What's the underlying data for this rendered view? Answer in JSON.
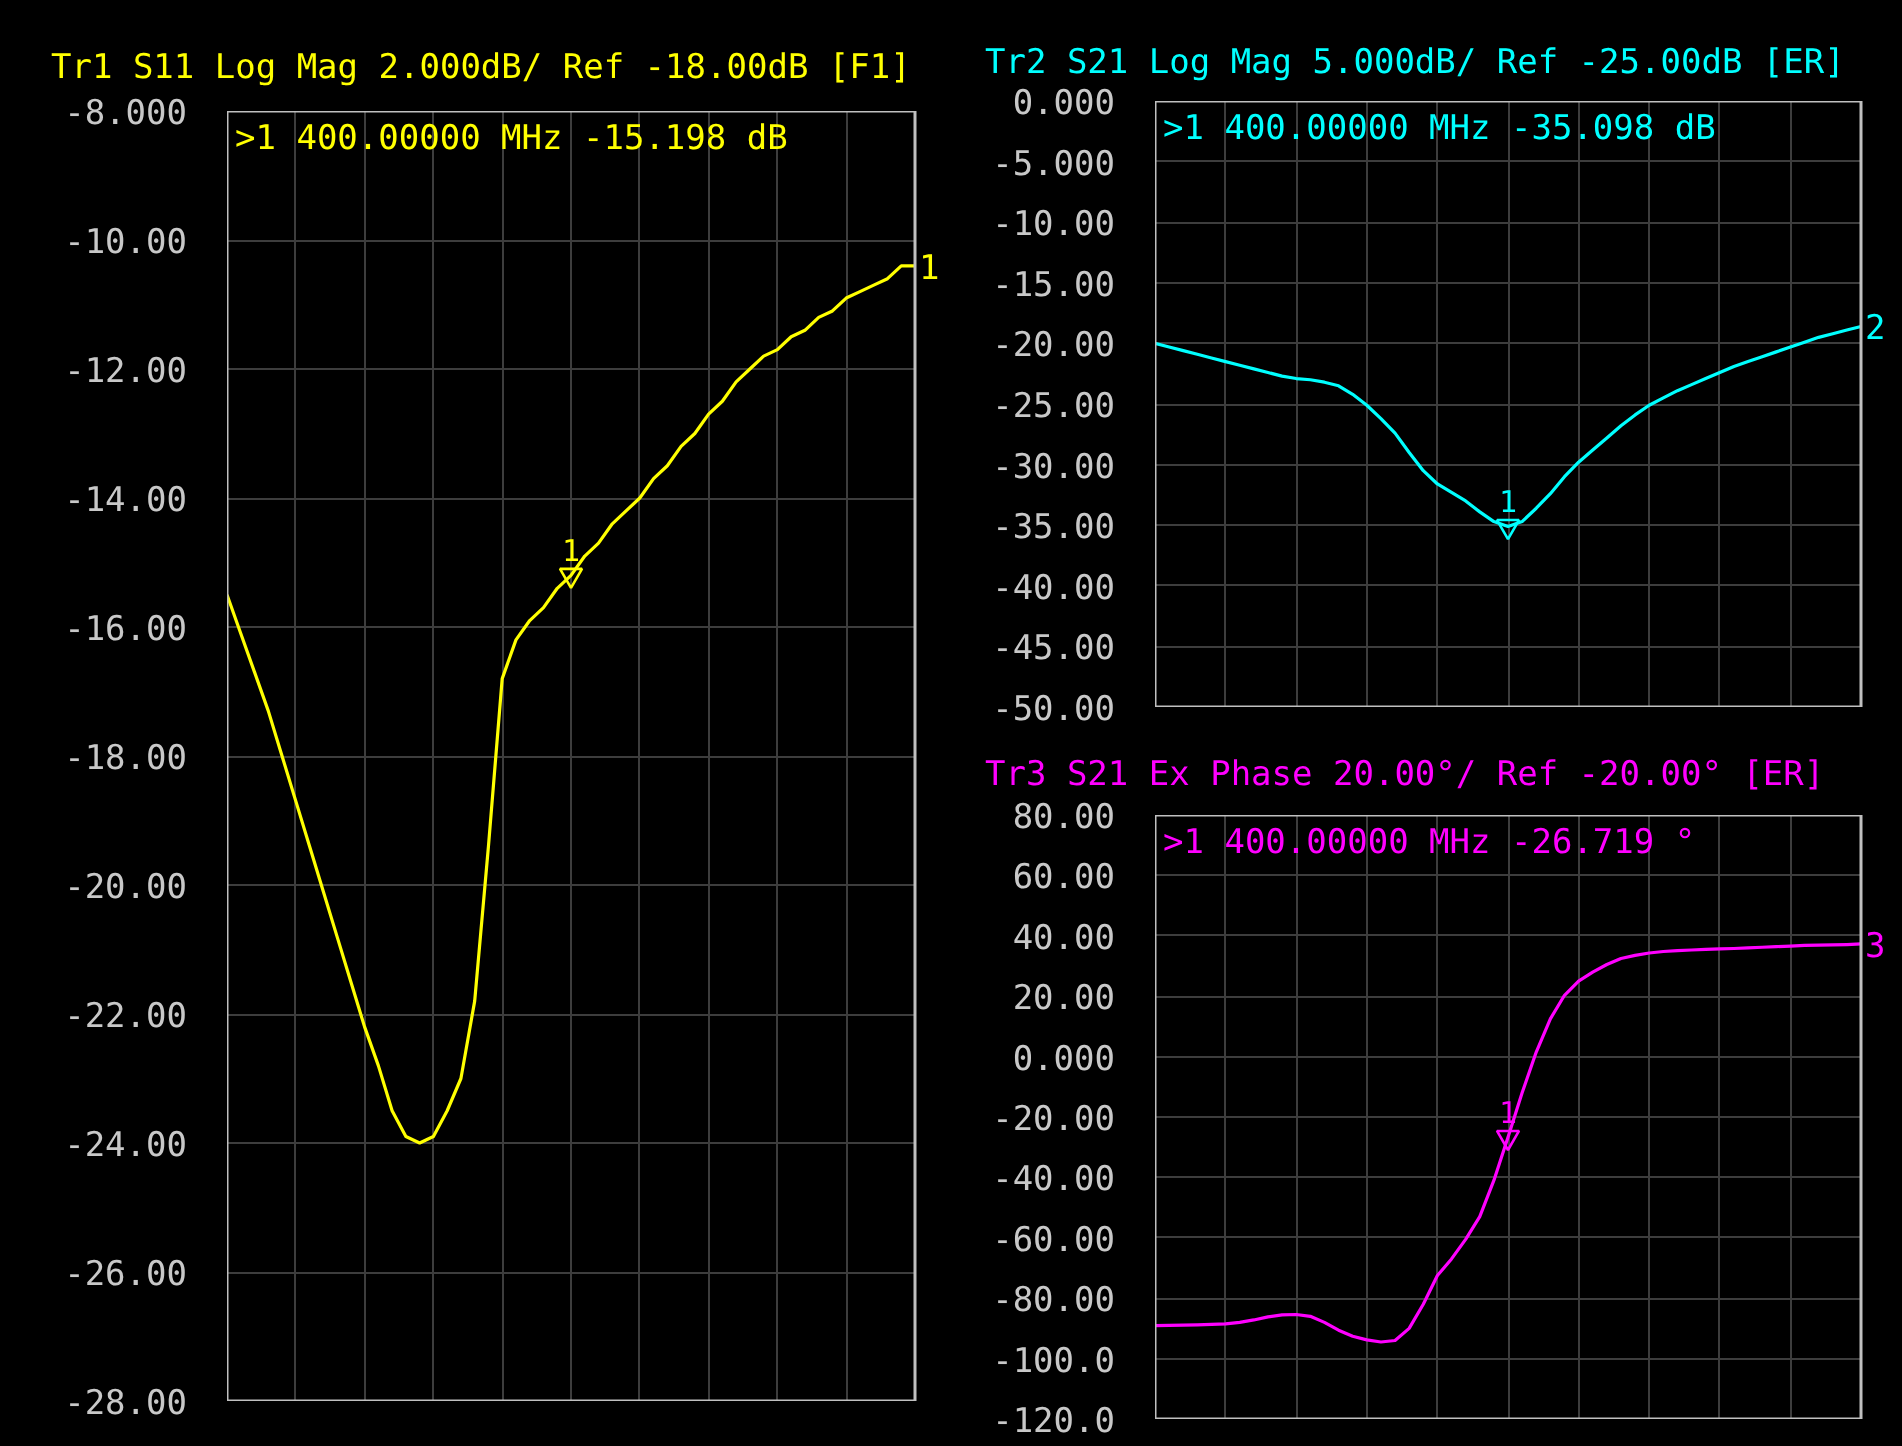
{
  "chart_data": [
    {
      "type": "line",
      "title": "Tr1 S11 Log Mag 2.000dB/ Ref -18.00dB [F1]",
      "categories": [
        null,
        null,
        null,
        null,
        null,
        null,
        null,
        null,
        null,
        null,
        null,
        null,
        null,
        null,
        null,
        null,
        null,
        null,
        null,
        null,
        null,
        null,
        null,
        null,
        null,
        null,
        null,
        null,
        null,
        null,
        null,
        null,
        null,
        null,
        null,
        null,
        null,
        null,
        null,
        null,
        null,
        null,
        null,
        null,
        null,
        null,
        null,
        null,
        null,
        null,
        null
      ],
      "series": [
        {
          "name": "1",
          "color": "#ffff00",
          "values": [
            -15.5,
            -16.1,
            -16.7,
            -17.3,
            -18.0,
            -18.7,
            -19.4,
            -20.1,
            -20.8,
            -21.5,
            -22.2,
            -22.8,
            -23.5,
            -23.9,
            -24.0,
            -23.9,
            -23.5,
            -23.0,
            -21.8,
            -19.4,
            -16.8,
            -16.2,
            -15.9,
            -15.7,
            -15.4,
            -15.2,
            -14.9,
            -14.7,
            -14.4,
            -14.2,
            -14.0,
            -13.7,
            -13.5,
            -13.2,
            -13.0,
            -12.7,
            -12.5,
            -12.2,
            -12.0,
            -11.8,
            -11.7,
            -11.5,
            -11.4,
            -11.2,
            -11.1,
            -10.9,
            -10.8,
            -10.7,
            -10.6,
            -10.4,
            -10.4
          ]
        },
        {
          "type": "scatter",
          "name": "1",
          "color": "#ffff00",
          "marker": "triangle",
          "values": [
            null,
            null,
            null,
            null,
            null,
            null,
            null,
            null,
            null,
            null,
            null,
            null,
            null,
            null,
            null,
            null,
            null,
            null,
            null,
            null,
            null,
            null,
            null,
            null,
            null,
            -15.198,
            null,
            null,
            null,
            null,
            null,
            null,
            null,
            null,
            null,
            null,
            null,
            null,
            null,
            null,
            null,
            null,
            null,
            null,
            null,
            null,
            null,
            null,
            null,
            null,
            null
          ]
        }
      ],
      "ylim": [
        -28,
        -8
      ],
      "yticks": [
        {
          "value": -8,
          "label": "-8.000"
        },
        {
          "value": -10,
          "label": "-10.00"
        },
        {
          "value": -12,
          "label": "-12.00"
        },
        {
          "value": -14,
          "label": "-14.00"
        },
        {
          "value": -16,
          "label": "-16.00"
        },
        {
          "value": -18,
          "label": "-18.00"
        },
        {
          "value": -20,
          "label": "-20.00"
        },
        {
          "value": -22,
          "label": "-22.00"
        },
        {
          "value": -24,
          "label": "-24.00"
        },
        {
          "value": -26,
          "label": "-26.00"
        },
        {
          "value": -28,
          "label": "-28.00"
        }
      ],
      "annotations": [
        ">1  400.00000 MHz -15.198 dB"
      ],
      "grid": true,
      "tick_labels": "y"
    },
    {
      "type": "line",
      "title": "Tr2 S21 Log Mag 5.000dB/ Ref -25.00dB [ER]",
      "categories": [
        null,
        null,
        null,
        null,
        null,
        null,
        null,
        null,
        null,
        null,
        null,
        null,
        null,
        null,
        null,
        null,
        null,
        null,
        null,
        null,
        null,
        null,
        null,
        null,
        null,
        null,
        null,
        null,
        null,
        null,
        null,
        null,
        null,
        null,
        null,
        null,
        null,
        null,
        null,
        null,
        null,
        null,
        null,
        null,
        null,
        null,
        null,
        null,
        null,
        null,
        null
      ],
      "series": [
        {
          "name": "2",
          "color": "#00ffff",
          "values": [
            -20.0,
            -20.3,
            -20.6,
            -20.9,
            -21.2,
            -21.5,
            -21.8,
            -22.1,
            -22.4,
            -22.7,
            -22.9,
            -23.0,
            -23.2,
            -23.5,
            -24.2,
            -25.1,
            -26.2,
            -27.4,
            -29.0,
            -30.5,
            -31.6,
            -32.3,
            -33.0,
            -33.9,
            -34.7,
            -35.1,
            -34.7,
            -33.6,
            -32.4,
            -31.0,
            -29.8,
            -28.8,
            -27.8,
            -26.8,
            -25.9,
            -25.1,
            -24.5,
            -23.9,
            -23.4,
            -22.9,
            -22.4,
            -21.9,
            -21.5,
            -21.1,
            -20.7,
            -20.3,
            -19.9,
            -19.5,
            -19.2,
            -18.9,
            -18.6
          ]
        },
        {
          "type": "scatter",
          "name": "1",
          "color": "#00ffff",
          "marker": "triangle",
          "values": [
            null,
            null,
            null,
            null,
            null,
            null,
            null,
            null,
            null,
            null,
            null,
            null,
            null,
            null,
            null,
            null,
            null,
            null,
            null,
            null,
            null,
            null,
            null,
            null,
            null,
            -35.098,
            null,
            null,
            null,
            null,
            null,
            null,
            null,
            null,
            null,
            null,
            null,
            null,
            null,
            null,
            null,
            null,
            null,
            null,
            null,
            null,
            null,
            null,
            null,
            null,
            null
          ]
        }
      ],
      "ylim": [
        -50,
        0
      ],
      "yticks": [
        {
          "value": 0,
          "label": "0.000"
        },
        {
          "value": -5,
          "label": "-5.000"
        },
        {
          "value": -10,
          "label": "-10.00"
        },
        {
          "value": -15,
          "label": "-15.00"
        },
        {
          "value": -20,
          "label": "-20.00"
        },
        {
          "value": -25,
          "label": "-25.00"
        },
        {
          "value": -30,
          "label": "-30.00"
        },
        {
          "value": -35,
          "label": "-35.00"
        },
        {
          "value": -40,
          "label": "-40.00"
        },
        {
          "value": -45,
          "label": "-45.00"
        },
        {
          "value": -50,
          "label": "-50.00"
        }
      ],
      "annotations": [
        ">1  400.00000 MHz -35.098 dB"
      ],
      "grid": true,
      "tick_labels": "y"
    },
    {
      "type": "line",
      "title": "Tr3 S21 Ex Phase 20.00°/ Ref -20.00° [ER]",
      "categories": [
        null,
        null,
        null,
        null,
        null,
        null,
        null,
        null,
        null,
        null,
        null,
        null,
        null,
        null,
        null,
        null,
        null,
        null,
        null,
        null,
        null,
        null,
        null,
        null,
        null,
        null,
        null,
        null,
        null,
        null,
        null,
        null,
        null,
        null,
        null,
        null,
        null,
        null,
        null,
        null,
        null,
        null,
        null,
        null,
        null,
        null,
        null,
        null,
        null,
        null,
        null
      ],
      "series": [
        {
          "name": "3",
          "color": "#ff00ff",
          "values": [
            -89.1,
            -89.0,
            -88.9,
            -88.8,
            -88.7,
            -88.5,
            -88.0,
            -87.2,
            -86.2,
            -85.5,
            -85.4,
            -86.0,
            -88.0,
            -90.6,
            -92.6,
            -93.8,
            -94.5,
            -94.0,
            -90.0,
            -82.0,
            -72.5,
            -67.0,
            -60.5,
            -53.0,
            -41.0,
            -26.7,
            -12.0,
            1.5,
            12.5,
            20.3,
            25.0,
            28.0,
            30.5,
            32.5,
            33.5,
            34.3,
            34.8,
            35.1,
            35.3,
            35.5,
            35.7,
            35.8,
            36.0,
            36.2,
            36.4,
            36.6,
            36.8,
            36.9,
            37.0,
            37.1,
            37.3
          ]
        },
        {
          "type": "scatter",
          "name": "1",
          "color": "#ff00ff",
          "marker": "triangle",
          "values": [
            null,
            null,
            null,
            null,
            null,
            null,
            null,
            null,
            null,
            null,
            null,
            null,
            null,
            null,
            null,
            null,
            null,
            null,
            null,
            null,
            null,
            null,
            null,
            null,
            null,
            -26.719,
            null,
            null,
            null,
            null,
            null,
            null,
            null,
            null,
            null,
            null,
            null,
            null,
            null,
            null,
            null,
            null,
            null,
            null,
            null,
            null,
            null,
            null,
            null,
            null,
            null
          ]
        }
      ],
      "ylim": [
        -120,
        80
      ],
      "yticks": [
        {
          "value": 80,
          "label": "80.00"
        },
        {
          "value": 60,
          "label": "60.00"
        },
        {
          "value": 40,
          "label": "40.00"
        },
        {
          "value": 20,
          "label": "20.00"
        },
        {
          "value": 0,
          "label": "0.000"
        },
        {
          "value": -20,
          "label": "-20.00"
        },
        {
          "value": -40,
          "label": "-40.00"
        },
        {
          "value": -60,
          "label": "-60.00"
        },
        {
          "value": -80,
          "label": "-80.00"
        },
        {
          "value": -100,
          "label": "-100.0"
        },
        {
          "value": -120,
          "label": "-120.0"
        }
      ],
      "annotations": [
        ">1  400.00000 MHz -26.719 °"
      ],
      "grid": true,
      "tick_labels": "y"
    }
  ]
}
